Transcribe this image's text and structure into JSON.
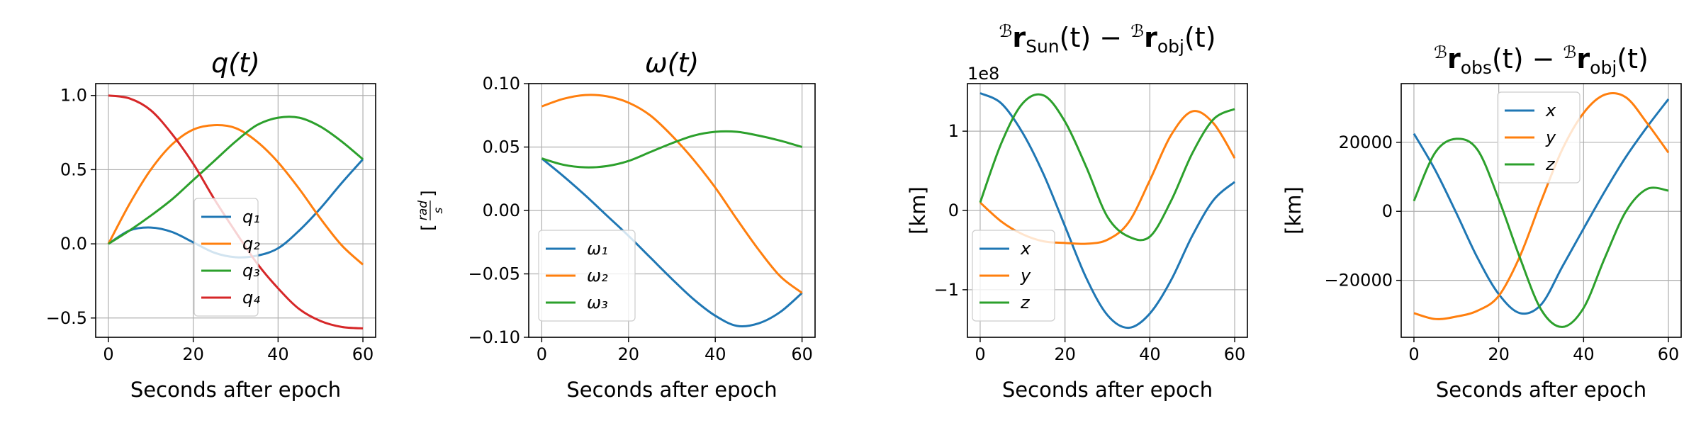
{
  "palette": {
    "blue": "#1f77b4",
    "orange": "#ff7f0e",
    "green": "#2ca02c",
    "red": "#d62728",
    "grid": "#b0b0b0"
  },
  "chart_data": [
    {
      "type": "line",
      "title": "q(t)",
      "xlabel": "Seconds after epoch",
      "ylabel": "",
      "xlim": [
        -3,
        63
      ],
      "ylim": [
        -0.63,
        1.08
      ],
      "xticks": [
        0,
        20,
        40,
        60
      ],
      "xtick_labels": [
        "0",
        "20",
        "40",
        "60"
      ],
      "yticks": [
        -0.5,
        0,
        0.5,
        1.0
      ],
      "ytick_labels": [
        "−0.5",
        "0.0",
        "0.5",
        "1.0"
      ],
      "grid": true,
      "legend_loc": "lower-center",
      "x": [
        0,
        5,
        10,
        15,
        20,
        25,
        30,
        35,
        40,
        45,
        50,
        55,
        60
      ],
      "series": [
        {
          "name": "q₁",
          "color": "#1f77b4",
          "values": [
            0.0,
            0.09,
            0.11,
            0.08,
            0.01,
            -0.06,
            -0.09,
            -0.08,
            -0.03,
            0.09,
            0.24,
            0.41,
            0.57
          ]
        },
        {
          "name": "q₂",
          "color": "#ff7f0e",
          "values": [
            0.0,
            0.27,
            0.5,
            0.67,
            0.77,
            0.8,
            0.78,
            0.69,
            0.55,
            0.37,
            0.17,
            -0.01,
            -0.14
          ]
        },
        {
          "name": "q₃",
          "color": "#2ca02c",
          "values": [
            0.0,
            0.09,
            0.19,
            0.3,
            0.43,
            0.56,
            0.69,
            0.8,
            0.85,
            0.85,
            0.79,
            0.69,
            0.57
          ]
        },
        {
          "name": "q₄",
          "color": "#d62728",
          "values": [
            1.0,
            0.98,
            0.9,
            0.74,
            0.54,
            0.3,
            0.08,
            -0.13,
            -0.3,
            -0.44,
            -0.52,
            -0.56,
            -0.57
          ]
        }
      ]
    },
    {
      "type": "line",
      "title": "ω(t)",
      "xlabel": "Seconds after epoch",
      "ylabel": "[rad/s]",
      "ylabel_num": "rad",
      "ylabel_den": "s",
      "xlim": [
        -3,
        63
      ],
      "ylim": [
        -0.1,
        0.1
      ],
      "xticks": [
        0,
        20,
        40,
        60
      ],
      "xtick_labels": [
        "0",
        "20",
        "40",
        "60"
      ],
      "yticks": [
        -0.1,
        -0.05,
        0,
        0.05,
        0.1
      ],
      "ytick_labels": [
        "−0.10",
        "−0.05",
        "0.00",
        "0.05",
        "0.10"
      ],
      "grid": true,
      "legend_loc": "lower-left",
      "x": [
        0,
        5,
        10,
        15,
        20,
        25,
        30,
        35,
        40,
        45,
        50,
        55,
        60
      ],
      "series": [
        {
          "name": "ω₁",
          "color": "#1f77b4",
          "values": [
            0.041,
            0.027,
            0.012,
            -0.004,
            -0.02,
            -0.037,
            -0.054,
            -0.07,
            -0.083,
            -0.091,
            -0.089,
            -0.08,
            -0.065
          ]
        },
        {
          "name": "ω₂",
          "color": "#ff7f0e",
          "values": [
            0.082,
            0.088,
            0.091,
            0.09,
            0.085,
            0.075,
            0.059,
            0.04,
            0.018,
            -0.007,
            -0.031,
            -0.052,
            -0.065
          ]
        },
        {
          "name": "ω₃",
          "color": "#2ca02c",
          "values": [
            0.041,
            0.036,
            0.034,
            0.035,
            0.039,
            0.046,
            0.053,
            0.059,
            0.062,
            0.062,
            0.059,
            0.055,
            0.05
          ]
        }
      ]
    },
    {
      "type": "line",
      "title": "ᴮr_Sun(t) − ᴮr_obj(t)",
      "title_parts": {
        "sup1": "ℬ",
        "r1": "r",
        "sub1": "Sun",
        "mid": "(t) − ",
        "sup2": "ℬ",
        "r2": "r",
        "sub2": "obj",
        "end": "(t)"
      },
      "xlabel": "Seconds after epoch",
      "ylabel": "[km]",
      "multiplier": "1e8",
      "xlim": [
        -3,
        63
      ],
      "ylim": [
        -1.6,
        1.6
      ],
      "xticks": [
        0,
        20,
        40,
        60
      ],
      "xtick_labels": [
        "0",
        "20",
        "40",
        "60"
      ],
      "yticks": [
        -1,
        0,
        1
      ],
      "ytick_labels": [
        "−1",
        "0",
        "1"
      ],
      "grid": true,
      "legend_loc": "lower-left",
      "x": [
        0,
        5,
        10,
        15,
        20,
        25,
        30,
        35,
        40,
        45,
        50,
        55,
        60
      ],
      "series": [
        {
          "name": "x",
          "color": "#1f77b4",
          "values": [
            1.48,
            1.35,
            0.98,
            0.45,
            -0.2,
            -0.85,
            -1.32,
            -1.48,
            -1.3,
            -0.88,
            -0.32,
            0.13,
            0.36
          ]
        },
        {
          "name": "y",
          "color": "#ff7f0e",
          "values": [
            0.1,
            -0.14,
            -0.3,
            -0.39,
            -0.41,
            -0.42,
            -0.37,
            -0.15,
            0.38,
            0.95,
            1.25,
            1.1,
            0.66
          ]
        },
        {
          "name": "z",
          "color": "#2ca02c",
          "values": [
            0.1,
            0.85,
            1.35,
            1.45,
            1.12,
            0.55,
            -0.08,
            -0.33,
            -0.33,
            0.12,
            0.72,
            1.15,
            1.28
          ]
        }
      ]
    },
    {
      "type": "line",
      "title": "ᴮr_obs(t) − ᴮr_obj(t)",
      "title_parts": {
        "sup1": "ℬ",
        "r1": "r",
        "sub1": "obs",
        "mid": "(t) − ",
        "sup2": "ℬ",
        "r2": "r",
        "sub2": "obj",
        "end": "(t)"
      },
      "xlabel": "Seconds after epoch",
      "ylabel": "[km]",
      "xlim": [
        -3,
        63
      ],
      "ylim": [
        -36500,
        37000
      ],
      "xticks": [
        0,
        20,
        40,
        60
      ],
      "xtick_labels": [
        "0",
        "20",
        "40",
        "60"
      ],
      "yticks": [
        -20000,
        0,
        20000
      ],
      "ytick_labels": [
        "−20000",
        "0",
        "20000"
      ],
      "grid": true,
      "legend_loc": "upper-center",
      "x": [
        0,
        5,
        10,
        15,
        20,
        25,
        30,
        35,
        40,
        45,
        50,
        55,
        60
      ],
      "series": [
        {
          "name": "x",
          "color": "#1f77b4",
          "values": [
            22500,
            12000,
            -500,
            -13500,
            -24000,
            -29500,
            -27000,
            -16000,
            -5000,
            5800,
            15800,
            24500,
            32500
          ]
        },
        {
          "name": "y",
          "color": "#ff7f0e",
          "values": [
            -29500,
            -31200,
            -30500,
            -28800,
            -24500,
            -13000,
            3000,
            18000,
            28500,
            33800,
            33000,
            25500,
            17000
          ]
        },
        {
          "name": "z",
          "color": "#2ca02c",
          "values": [
            3000,
            17000,
            21000,
            17800,
            3500,
            -13500,
            -28500,
            -33500,
            -28000,
            -13500,
            0,
            6500,
            6000
          ]
        }
      ]
    }
  ]
}
